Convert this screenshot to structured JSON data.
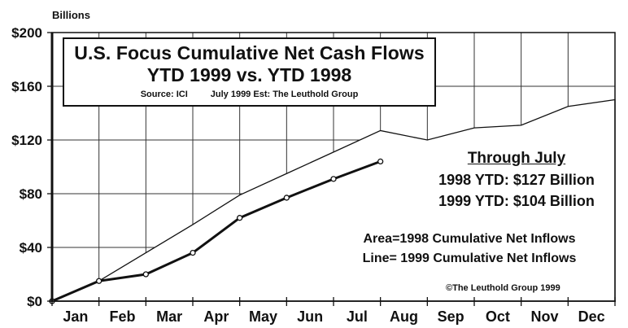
{
  "chart_data": {
    "type": "area",
    "title": "U.S. Focus Cumulative Net Cash Flows",
    "subtitle": "YTD 1999 vs. YTD 1998",
    "source_note": "Source: ICI",
    "estimate_note": "July 1999 Est: The Leuthold Group",
    "ylabel": "Billions",
    "xlabel": "",
    "ylim": [
      0,
      200
    ],
    "y_ticks": [
      "$0",
      "$40",
      "$80",
      "$120",
      "$160",
      "$200"
    ],
    "y_tick_values": [
      0,
      40,
      80,
      120,
      160,
      200
    ],
    "categories": [
      "Jan",
      "Feb",
      "Mar",
      "Apr",
      "May",
      "Jun",
      "Jul",
      "Aug",
      "Sep",
      "Oct",
      "Nov",
      "Dec"
    ],
    "grid": true,
    "series": [
      {
        "name": "1998 Cumulative Net Inflows",
        "style": "area",
        "x": [
          "start",
          "Jan",
          "Feb",
          "Mar",
          "Apr",
          "May",
          "Jun",
          "Jul",
          "Aug",
          "Sep",
          "Oct",
          "Nov",
          "Dec"
        ],
        "values": [
          0,
          15,
          36,
          57,
          79,
          95,
          111,
          127,
          120,
          129,
          131,
          145,
          150
        ]
      },
      {
        "name": "1999 Cumulative Net Inflows",
        "style": "line-with-markers",
        "x": [
          "start",
          "Jan",
          "Feb",
          "Mar",
          "Apr",
          "May",
          "Jun",
          "Jul"
        ],
        "values": [
          0,
          15,
          20,
          36,
          62,
          77,
          91,
          104
        ]
      }
    ],
    "annotations": {
      "through_title": "Through July",
      "ytd_1998": "1998 YTD: $127 Billion",
      "ytd_1999": "1999 YTD: $104 Billion",
      "legend_area": "Area=1998 Cumulative Net Inflows",
      "legend_line": "Line= 1999 Cumulative Net Inflows",
      "copyright": "©The Leuthold Group 1999"
    }
  }
}
